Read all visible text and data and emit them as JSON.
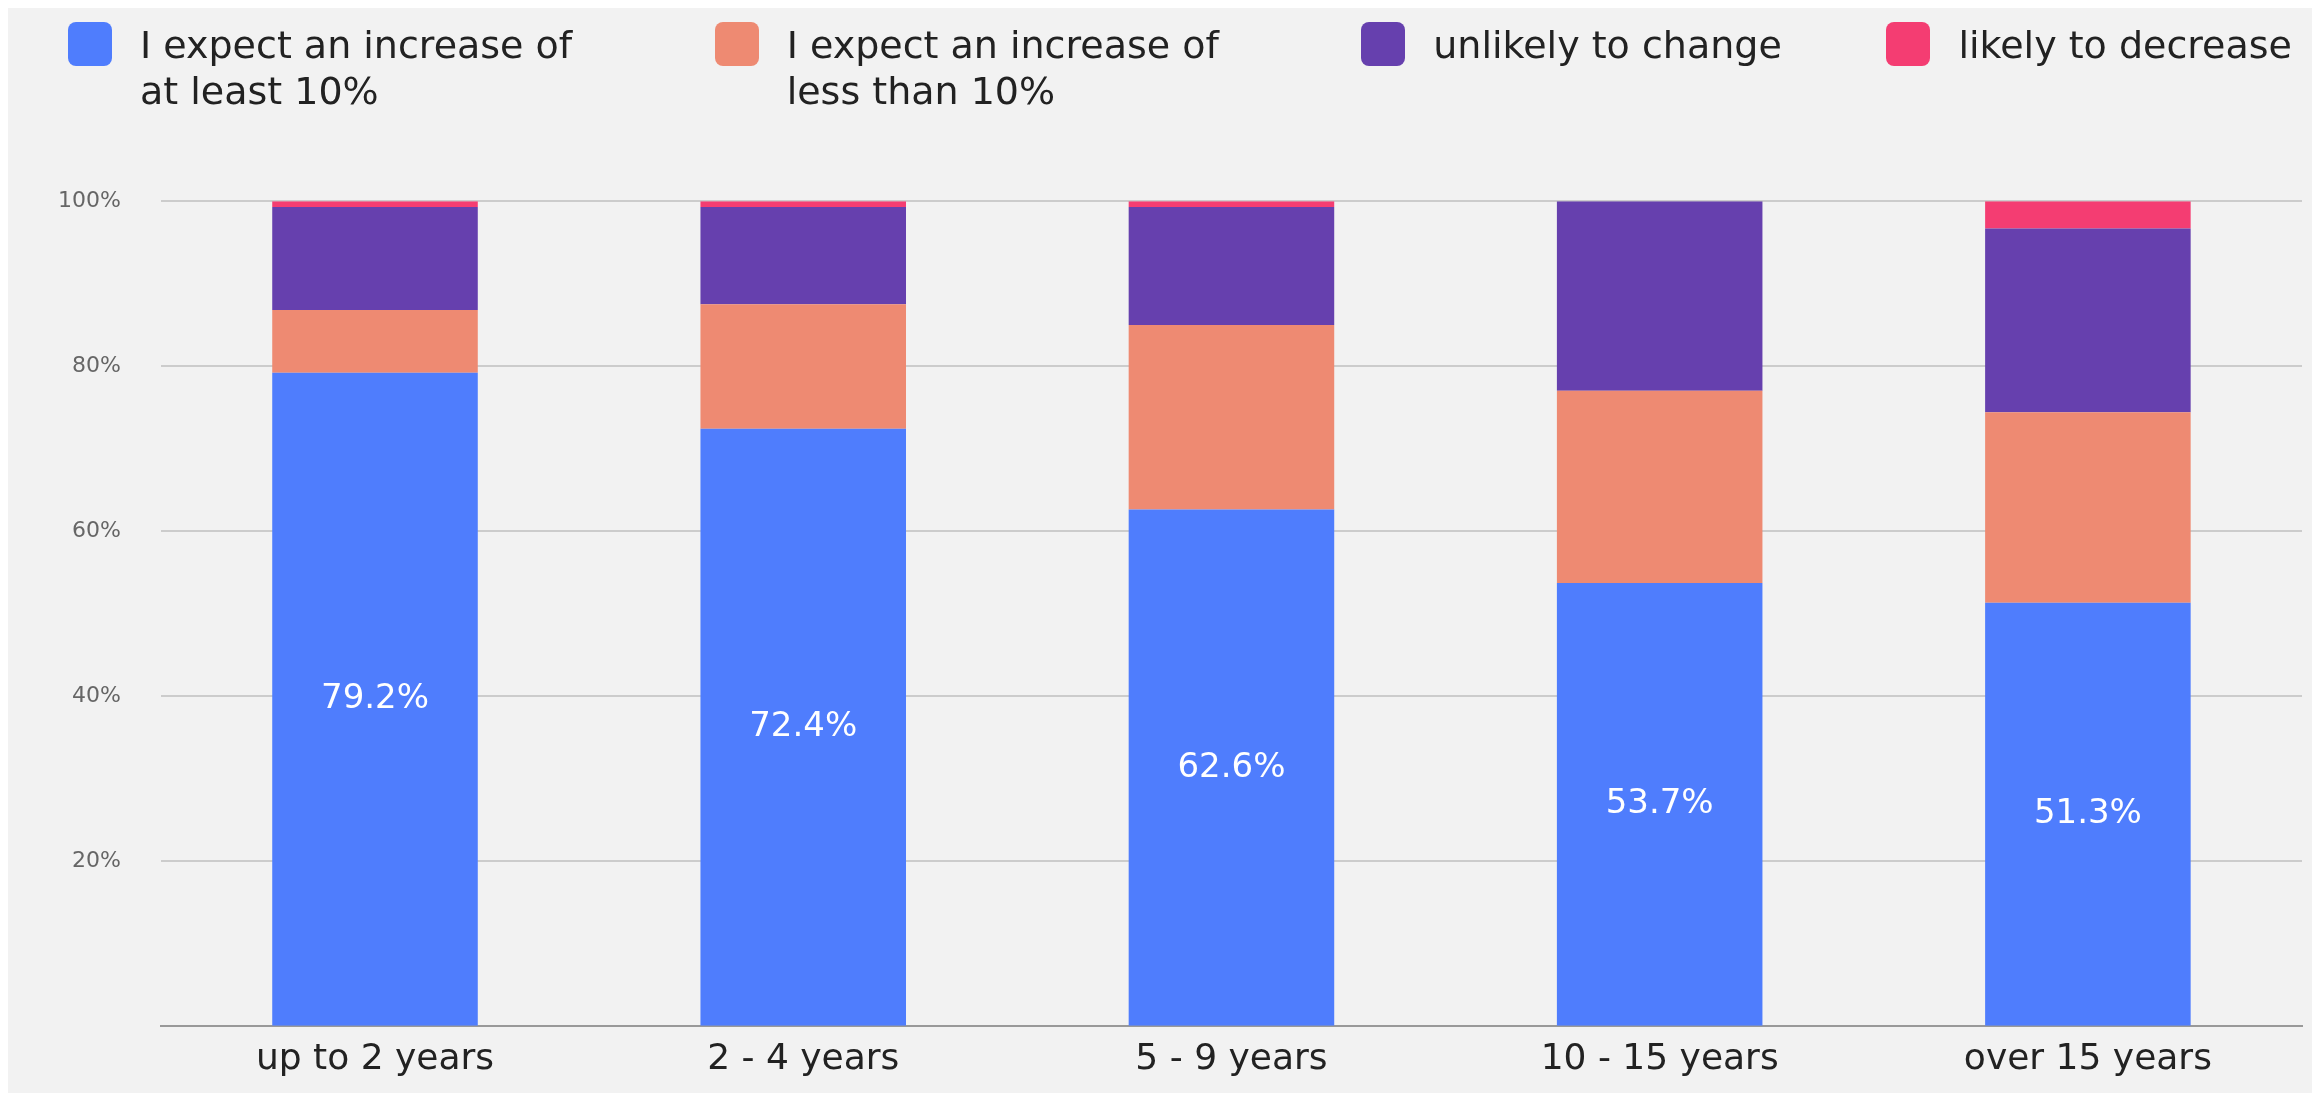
{
  "chart_data": {
    "type": "bar",
    "stacked": true,
    "categories": [
      "up to 2 years",
      "2 - 4 years",
      "5 - 9 years",
      "10 - 15 years",
      "over 15 years"
    ],
    "series": [
      {
        "name": "I expect an increase of at least 10%",
        "color": "#4f7dfd",
        "values": [
          79.2,
          72.4,
          62.6,
          53.7,
          51.3
        ],
        "value_labels": [
          "79.2%",
          "72.4%",
          "62.6%",
          "53.7%",
          "51.3%"
        ]
      },
      {
        "name": "I expect an increase of less than 10%",
        "color": "#ee8a72",
        "values": [
          7.6,
          15.1,
          22.4,
          23.3,
          23.1
        ]
      },
      {
        "name": "unlikely to change",
        "color": "#6640ae",
        "values": [
          12.5,
          11.8,
          14.3,
          23.0,
          22.3
        ]
      },
      {
        "name": "likely to decrease",
        "color": "#f43d72",
        "values": [
          0.7,
          0.7,
          0.7,
          0,
          3.3
        ]
      }
    ],
    "ylim": [
      0,
      100
    ],
    "yticks": [
      {
        "value": 20,
        "label": "20%"
      },
      {
        "value": 40,
        "label": "40%"
      },
      {
        "value": 60,
        "label": "60%"
      },
      {
        "value": 80,
        "label": "80%"
      },
      {
        "value": 100,
        "label": "100%"
      }
    ],
    "grid": "y",
    "legend": "top"
  }
}
